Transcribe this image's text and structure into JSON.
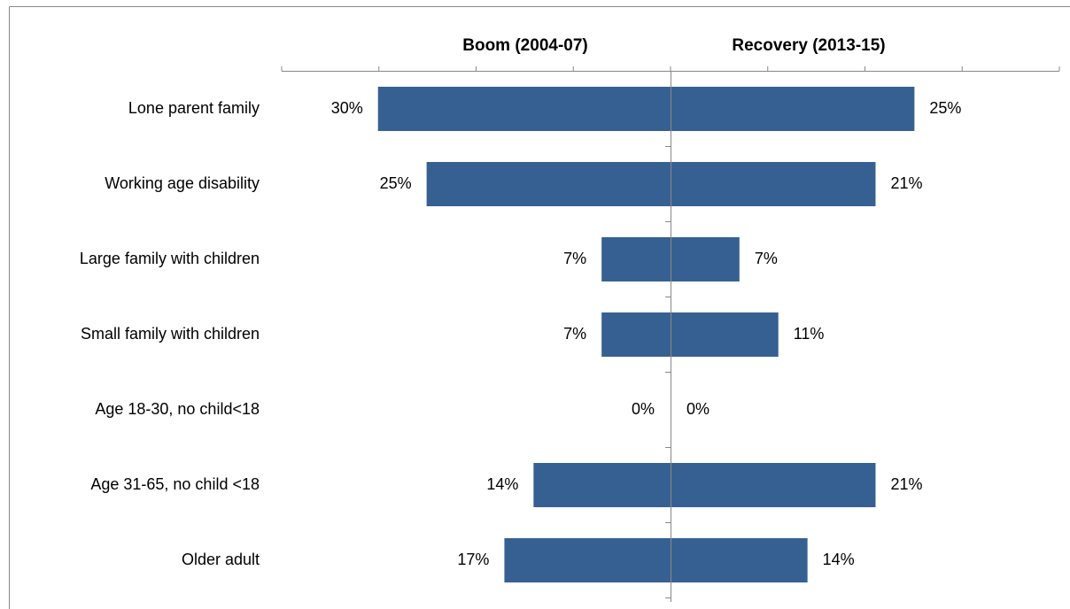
{
  "chart_data": {
    "type": "butterfly-bar",
    "categories": [
      "Lone parent family",
      "Working age disability",
      "Large family with children",
      "Small family with children",
      "Age 18-30, no child<18",
      "Age 31-65, no child <18",
      "Older adult"
    ],
    "series": [
      {
        "name": "Boom (2004-07)",
        "color": "#376092",
        "side": "left",
        "values": [
          30,
          25,
          7,
          7,
          0,
          14,
          17
        ],
        "value_labels": [
          "30%",
          "25%",
          "7%",
          "7%",
          "0%",
          "14%",
          "17%"
        ]
      },
      {
        "name": "Recovery (2013-15)",
        "color": "#376092",
        "side": "right",
        "values": [
          25,
          21,
          7,
          11,
          0,
          21,
          14
        ],
        "value_labels": [
          "25%",
          "21%",
          "7%",
          "11%",
          "0%",
          "21%",
          "14%"
        ]
      }
    ],
    "xlim": [
      0,
      40
    ],
    "xticks": [
      0,
      10,
      20,
      30,
      40
    ]
  }
}
